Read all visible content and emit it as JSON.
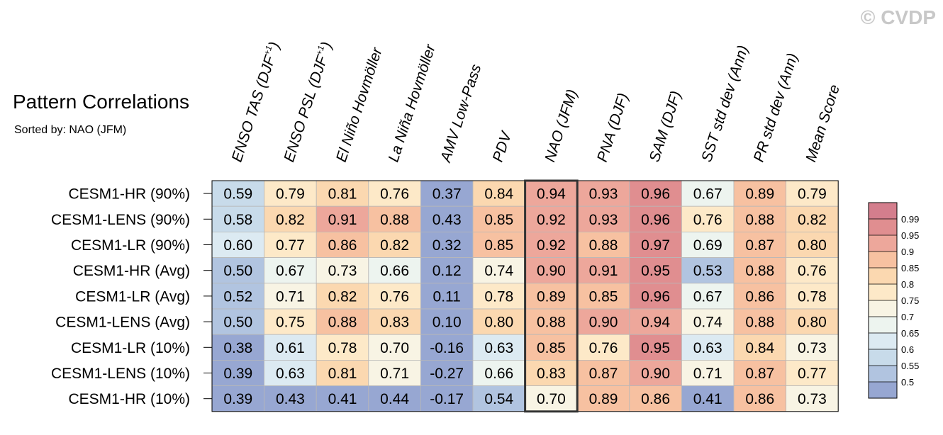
{
  "watermark": "© CVDP",
  "chart_data": {
    "type": "heatmap",
    "title": "Pattern Correlations",
    "subtitle": "Sorted by: NAO (JFM)",
    "columns": [
      {
        "base": "ENSO TAS (DJF",
        "sup": "+1",
        "tail": ")"
      },
      {
        "base": "ENSO PSL (DJF",
        "sup": "+1",
        "tail": ")"
      },
      {
        "base": "El Niño Hovmöller",
        "sup": "",
        "tail": ""
      },
      {
        "base": "La Niña Hovmöller",
        "sup": "",
        "tail": ""
      },
      {
        "base": "AMV Low-Pass",
        "sup": "",
        "tail": ""
      },
      {
        "base": "PDV",
        "sup": "",
        "tail": ""
      },
      {
        "base": "NAO (JFM)",
        "sup": "",
        "tail": ""
      },
      {
        "base": "PNA (DJF)",
        "sup": "",
        "tail": ""
      },
      {
        "base": "SAM (DJF)",
        "sup": "",
        "tail": ""
      },
      {
        "base": "SST std dev (Ann)",
        "sup": "",
        "tail": ""
      },
      {
        "base": "PR std dev (Ann)",
        "sup": "",
        "tail": ""
      },
      {
        "base": "Mean Score",
        "sup": "",
        "tail": ""
      }
    ],
    "rows": [
      "CESM1-HR (90%)",
      "CESM1-LENS (90%)",
      "CESM1-LR (90%)",
      "CESM1-HR (Avg)",
      "CESM1-LR (Avg)",
      "CESM1-LENS (Avg)",
      "CESM1-LR (10%)",
      "CESM1-LENS (10%)",
      "CESM1-HR (10%)"
    ],
    "values": [
      [
        "0.59",
        "0.79",
        "0.81",
        "0.76",
        "0.37",
        "0.84",
        "0.94",
        "0.93",
        "0.96",
        "0.67",
        "0.89",
        "0.79"
      ],
      [
        "0.58",
        "0.82",
        "0.91",
        "0.88",
        "0.43",
        "0.85",
        "0.92",
        "0.93",
        "0.96",
        "0.76",
        "0.88",
        "0.82"
      ],
      [
        "0.60",
        "0.77",
        "0.86",
        "0.82",
        "0.32",
        "0.85",
        "0.92",
        "0.88",
        "0.97",
        "0.69",
        "0.87",
        "0.80"
      ],
      [
        "0.50",
        "0.67",
        "0.73",
        "0.66",
        "0.12",
        "0.74",
        "0.90",
        "0.91",
        "0.95",
        "0.53",
        "0.88",
        "0.76"
      ],
      [
        "0.52",
        "0.71",
        "0.82",
        "0.76",
        "0.11",
        "0.78",
        "0.89",
        "0.85",
        "0.96",
        "0.67",
        "0.86",
        "0.78"
      ],
      [
        "0.50",
        "0.75",
        "0.88",
        "0.83",
        "0.10",
        "0.80",
        "0.88",
        "0.90",
        "0.94",
        "0.74",
        "0.88",
        "0.80"
      ],
      [
        "0.38",
        "0.61",
        "0.78",
        "0.70",
        "-0.16",
        "0.63",
        "0.85",
        "0.76",
        "0.95",
        "0.63",
        "0.84",
        "0.73"
      ],
      [
        "0.39",
        "0.63",
        "0.81",
        "0.71",
        "-0.27",
        "0.66",
        "0.83",
        "0.87",
        "0.90",
        "0.71",
        "0.87",
        "0.77"
      ],
      [
        "0.39",
        "0.43",
        "0.41",
        "0.44",
        "-0.17",
        "0.54",
        "0.70",
        "0.89",
        "0.86",
        "0.41",
        "0.86",
        "0.73"
      ]
    ],
    "highlight_column": "NAO (JFM)",
    "colorbar": {
      "thresholds": [
        0.5,
        0.55,
        0.6,
        0.65,
        0.7,
        0.75,
        0.8,
        0.85,
        0.9,
        0.95,
        0.99
      ],
      "labels": [
        "0.5",
        "0.55",
        "0.6",
        "0.65",
        "0.7",
        "0.75",
        "0.8",
        "0.85",
        "0.9",
        "0.95",
        "0.99"
      ],
      "colors": [
        "#97a7d2",
        "#b1c4e0",
        "#c8dbea",
        "#dceaf2",
        "#edf4ef",
        "#f8f4e4",
        "#fde9c8",
        "#fbd8b0",
        "#f7c1a1",
        "#eda79b",
        "#e08e90",
        "#d47e8d"
      ]
    }
  }
}
